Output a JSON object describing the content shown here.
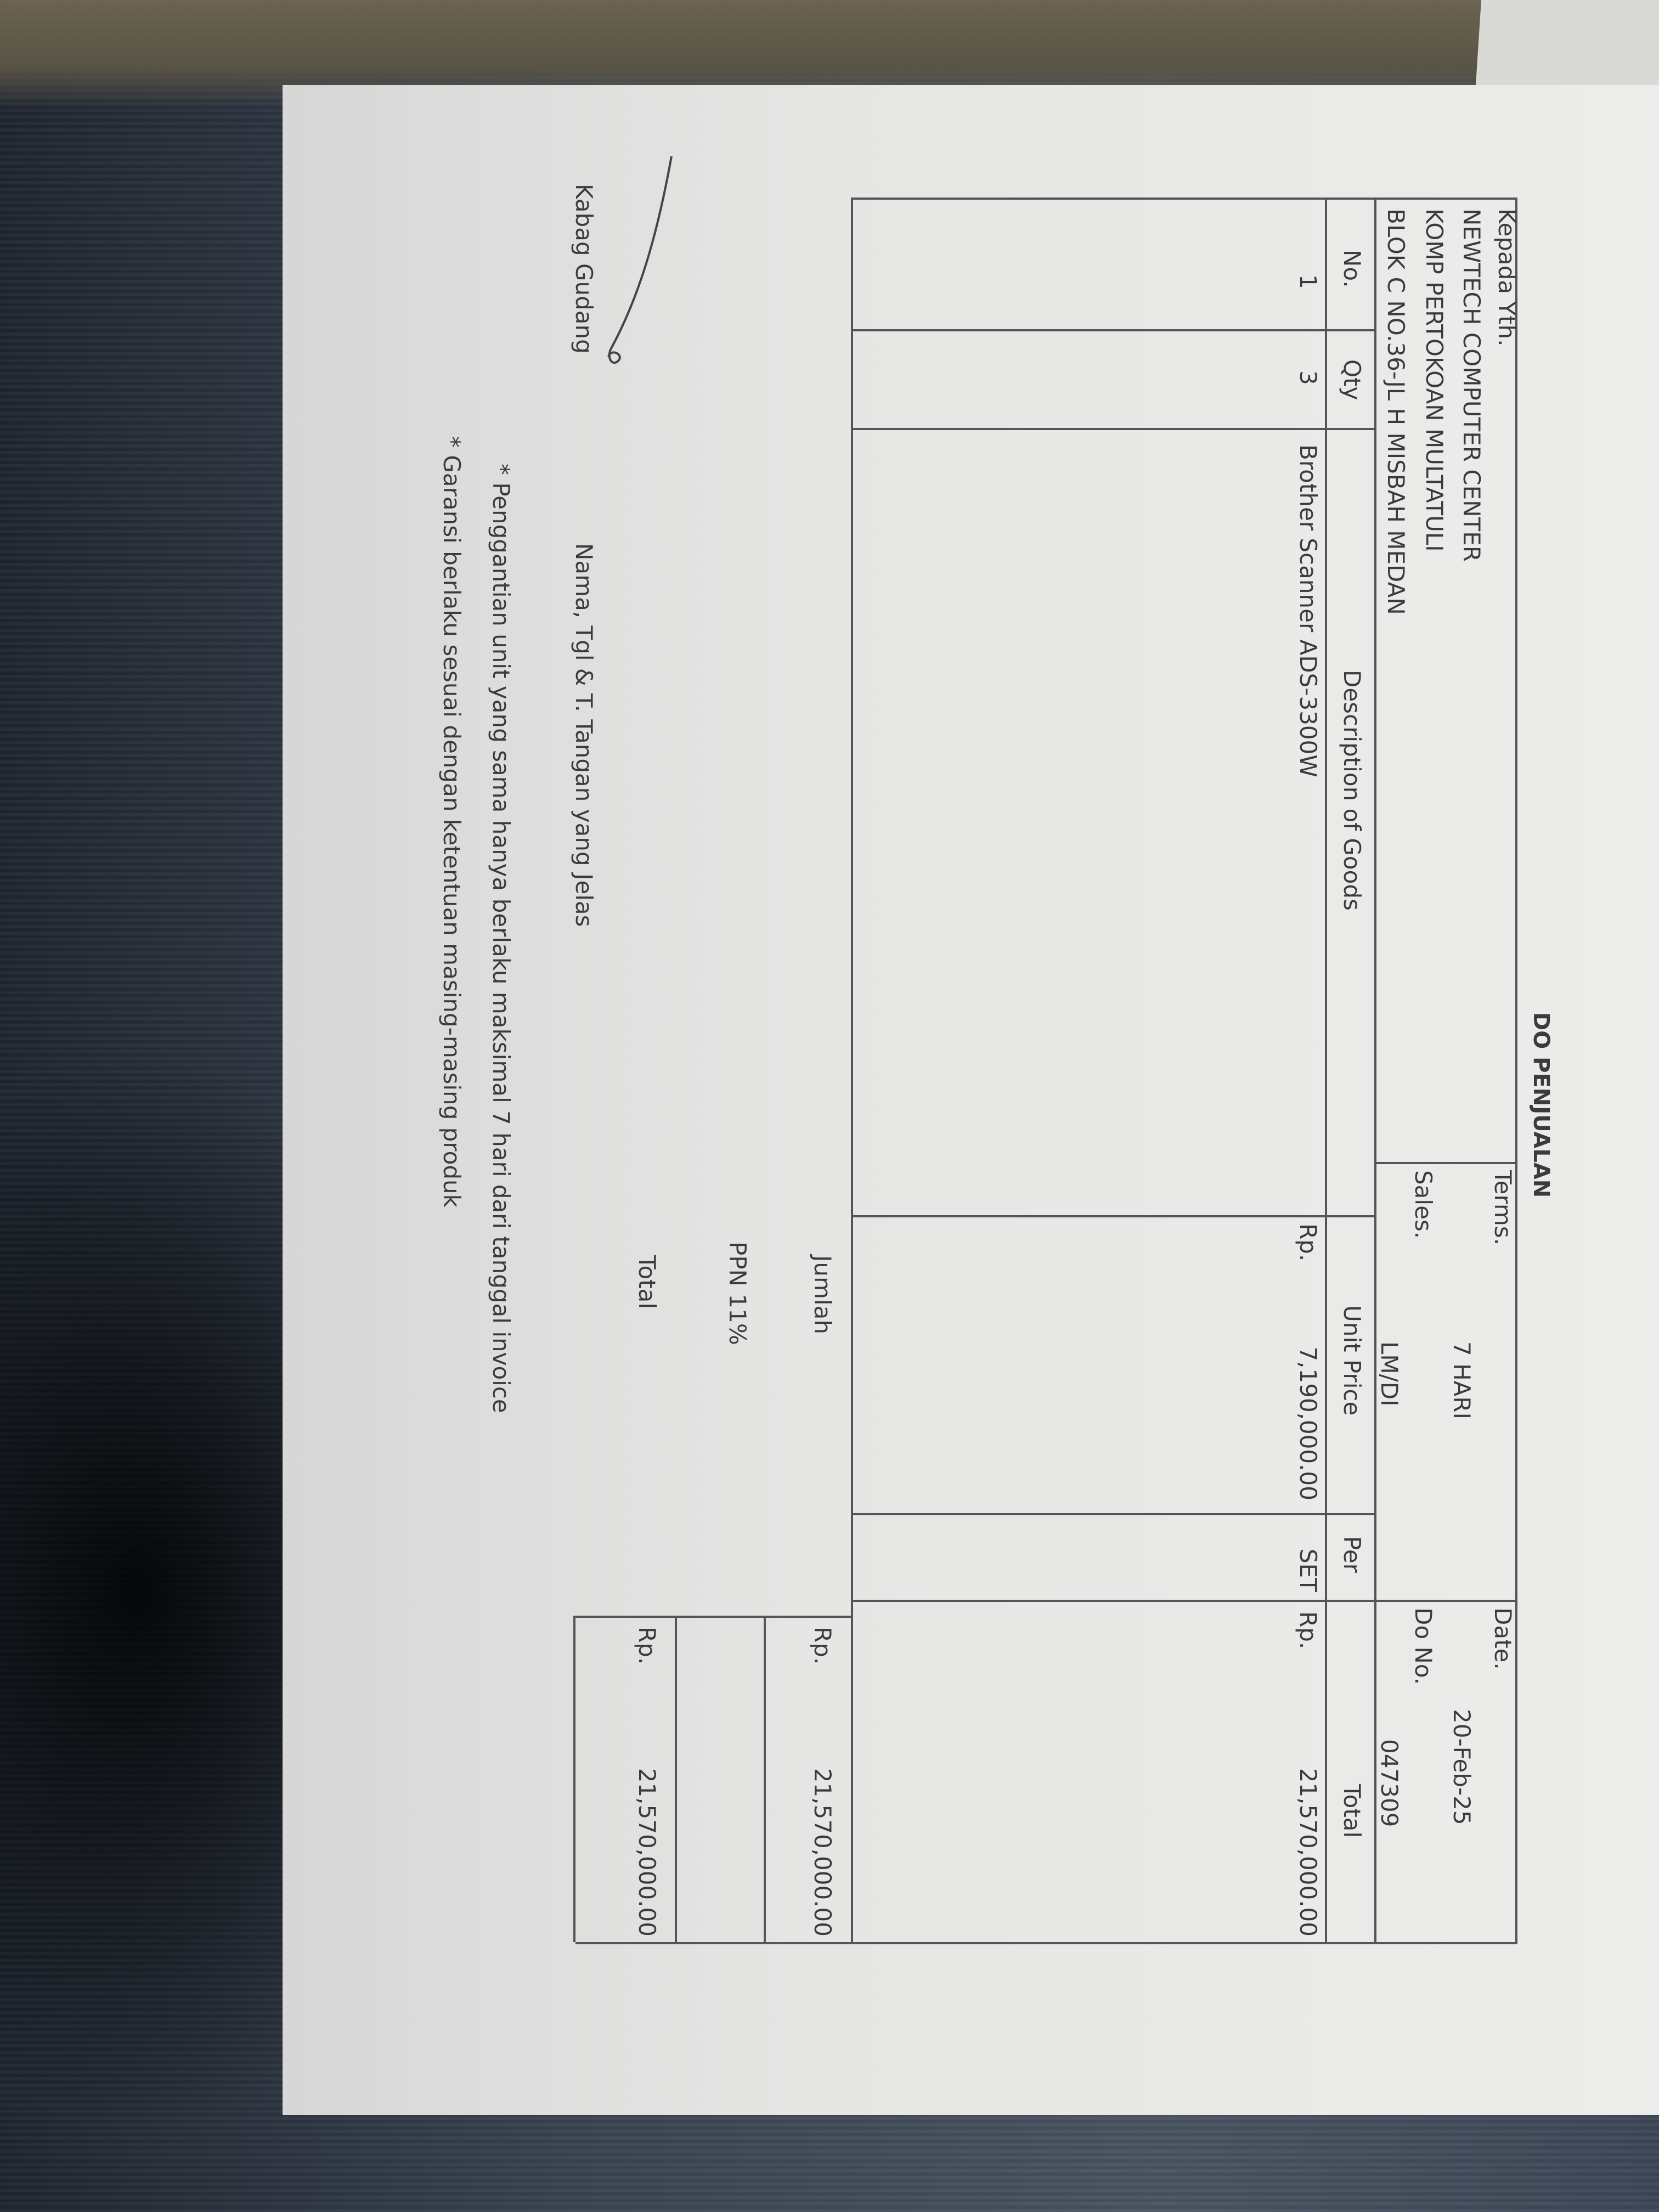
{
  "document": {
    "title": "DO PENJUALAN",
    "recipient": {
      "label": "Kepada Yth.",
      "lines": [
        "NEWTECH COMPUTER CENTER",
        "KOMP PERTOKOAN MULTATULI",
        "BLOK C NO.36-JL H MISBAH MEDAN"
      ]
    },
    "terms": {
      "label": "Terms.",
      "value": "7 HARI"
    },
    "sales": {
      "label": "Sales.",
      "value": "LM/DI"
    },
    "date": {
      "label": "Date.",
      "value": "20-Feb-25"
    },
    "do_no": {
      "label": "Do No.",
      "value": "047309"
    },
    "table": {
      "headers": {
        "no": "No.",
        "qty": "Qty",
        "description": "Description of Goods",
        "unit_price": "Unit Price",
        "per": "Per",
        "total": "Total"
      },
      "rows": [
        {
          "no": "1",
          "qty": "3",
          "description": "Brother Scanner ADS-3300W",
          "unit_price_currency": "Rp.",
          "unit_price": "7,190,000.00",
          "per": "SET",
          "total_currency": "Rp.",
          "total": "21,570,000.00"
        }
      ]
    },
    "summary": {
      "jumlah": {
        "label": "Jumlah",
        "currency": "Rp.",
        "value": "21,570,000.00"
      },
      "ppn": {
        "label": "PPN 11%"
      },
      "total": {
        "label": "Total",
        "currency": "Rp.",
        "value": "21,570,000.00"
      }
    },
    "signature": {
      "role": "Kabag Gudang",
      "instruction": "Nama, Tgl & T. Tangan yang Jelas"
    },
    "notes": [
      "* Penggantian unit yang sama hanya berlaku maksimal 7 hari dari tanggal invoice",
      "* Garansi berlaku sesuai dengan ketentuan masing-masing produk"
    ]
  }
}
